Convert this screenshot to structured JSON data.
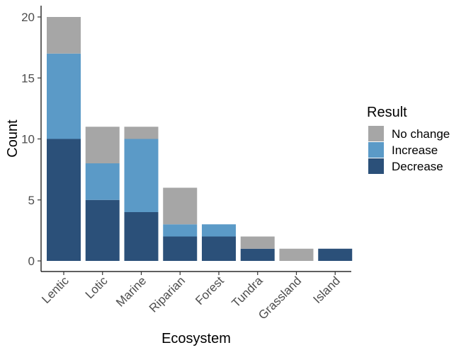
{
  "chart_data": {
    "type": "bar",
    "stacked": true,
    "categories": [
      "Lentic",
      "Lotic",
      "Marine",
      "Riparian",
      "Forest",
      "Tundra",
      "Grassland",
      "Island"
    ],
    "series": [
      {
        "name": "Decrease",
        "color": "#2b5079",
        "values": [
          10,
          5,
          4,
          2,
          2,
          1,
          0,
          1
        ]
      },
      {
        "name": "Increase",
        "color": "#5b9ac7",
        "values": [
          7,
          3,
          6,
          1,
          1,
          0,
          0,
          0
        ]
      },
      {
        "name": "No change",
        "color": "#a6a6a6",
        "values": [
          3,
          3,
          1,
          3,
          0,
          1,
          1,
          0
        ]
      }
    ],
    "xlabel": "Ecosystem",
    "ylabel": "Count",
    "ylim": [
      0,
      21
    ],
    "yticks": [
      0,
      5,
      10,
      15,
      20
    ],
    "grid": false,
    "legend": {
      "title": "Result",
      "position": "right",
      "entries": [
        "No change",
        "Increase",
        "Decrease"
      ]
    }
  }
}
